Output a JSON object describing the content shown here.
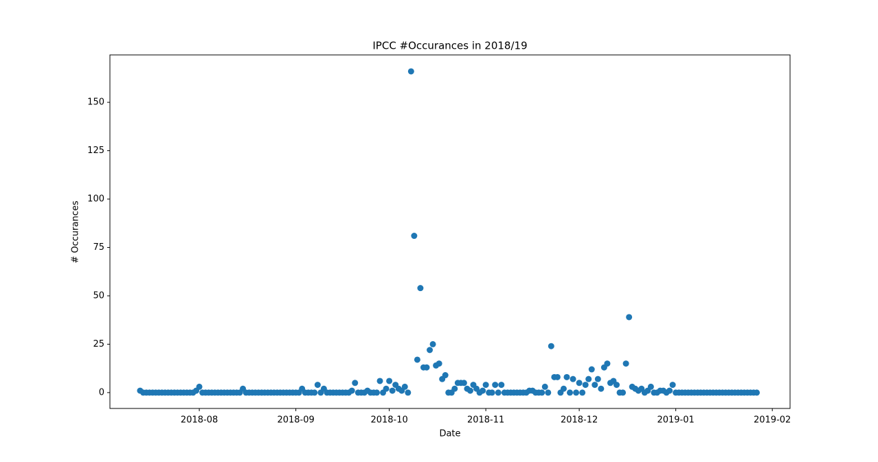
{
  "chart_data": {
    "type": "scatter",
    "title": "IPCC #Occurances in 2018/19",
    "x_label": "Date",
    "y_label": "# Occurances",
    "x": [
      17725,
      17726,
      17727,
      17728,
      17729,
      17730,
      17731,
      17732,
      17733,
      17734,
      17735,
      17736,
      17737,
      17738,
      17739,
      17740,
      17741,
      17742,
      17743,
      17744,
      17745,
      17746,
      17747,
      17748,
      17749,
      17750,
      17751,
      17752,
      17753,
      17754,
      17755,
      17756,
      17757,
      17758,
      17759,
      17760,
      17761,
      17762,
      17763,
      17764,
      17765,
      17766,
      17767,
      17768,
      17769,
      17770,
      17771,
      17772,
      17773,
      17774,
      17775,
      17776,
      17777,
      17778,
      17779,
      17780,
      17781,
      17782,
      17783,
      17784,
      17785,
      17786,
      17787,
      17788,
      17789,
      17790,
      17791,
      17792,
      17793,
      17794,
      17795,
      17796,
      17797,
      17798,
      17799,
      17800,
      17801,
      17802,
      17803,
      17804,
      17805,
      17806,
      17807,
      17808,
      17809,
      17810,
      17811,
      17812,
      17813,
      17814,
      17815,
      17816,
      17817,
      17818,
      17819,
      17820,
      17821,
      17822,
      17823,
      17824,
      17825,
      17826,
      17827,
      17828,
      17829,
      17830,
      17831,
      17832,
      17833,
      17834,
      17835,
      17836,
      17837,
      17838,
      17839,
      17840,
      17841,
      17842,
      17843,
      17844,
      17845,
      17846,
      17847,
      17848,
      17849,
      17850,
      17851,
      17852,
      17853,
      17854,
      17855,
      17856,
      17857,
      17858,
      17859,
      17860,
      17861,
      17862,
      17863,
      17864,
      17865,
      17866,
      17867,
      17868,
      17869,
      17870,
      17871,
      17872,
      17873,
      17874,
      17875,
      17876,
      17877,
      17878,
      17879,
      17880,
      17881,
      17882,
      17883,
      17884,
      17885,
      17886,
      17887,
      17888,
      17889,
      17890,
      17891,
      17892,
      17893,
      17894,
      17895,
      17896,
      17897,
      17898,
      17899,
      17900,
      17901,
      17902,
      17903,
      17904,
      17905,
      17906,
      17907,
      17908,
      17909,
      17910,
      17911,
      17912,
      17913,
      17914,
      17915,
      17916,
      17917,
      17918,
      17919,
      17920,
      17921,
      17922,
      17923
    ],
    "series": [
      {
        "color": "#1f77b4",
        "values": [
          1,
          0,
          0,
          0,
          0,
          0,
          0,
          0,
          0,
          0,
          0,
          0,
          0,
          0,
          0,
          0,
          0,
          0,
          1,
          3,
          0,
          0,
          0,
          0,
          0,
          0,
          0,
          0,
          0,
          0,
          0,
          0,
          0,
          2,
          0,
          0,
          0,
          0,
          0,
          0,
          0,
          0,
          0,
          0,
          0,
          0,
          0,
          0,
          0,
          0,
          0,
          0,
          2,
          0,
          0,
          0,
          0,
          4,
          0,
          2,
          0,
          0,
          0,
          0,
          0,
          0,
          0,
          0,
          1,
          5,
          0,
          0,
          0,
          1,
          0,
          0,
          0,
          6,
          0,
          2,
          6,
          1,
          4,
          2,
          1,
          3,
          0,
          166,
          81,
          17,
          54,
          13,
          13,
          22,
          25,
          14,
          15,
          7,
          9,
          0,
          0,
          2,
          5,
          5,
          5,
          2,
          1,
          4,
          2,
          0,
          1,
          4,
          0,
          0,
          4,
          0,
          4,
          0,
          0,
          0,
          0,
          0,
          0,
          0,
          0,
          1,
          1,
          0,
          0,
          0,
          3,
          0,
          24,
          8,
          8,
          0,
          2,
          8,
          0,
          7,
          0,
          5,
          0,
          4,
          7,
          12,
          4,
          7,
          2,
          13,
          15,
          5,
          6,
          4,
          0,
          0,
          15,
          39,
          3,
          2,
          1,
          2,
          0,
          1,
          3,
          0,
          0,
          1,
          1,
          0,
          1,
          4,
          0,
          0,
          0,
          0,
          0,
          0,
          0,
          0,
          0,
          0,
          0,
          0,
          0,
          0,
          0,
          0,
          0,
          0,
          0,
          0,
          0,
          0,
          0,
          0,
          0,
          0,
          0
        ]
      }
    ],
    "xlim": [
      17715.3,
      17933.7
    ],
    "xticks": [
      {
        "value": 17744,
        "label": "2018-08"
      },
      {
        "value": 17775,
        "label": "2018-09"
      },
      {
        "value": 17805,
        "label": "2018-10"
      },
      {
        "value": 17836,
        "label": "2018-11"
      },
      {
        "value": 17866,
        "label": "2018-12"
      },
      {
        "value": 17897,
        "label": "2019-01"
      },
      {
        "value": 17928,
        "label": "2019-02"
      }
    ],
    "ylim": [
      -8.2,
      174.5
    ],
    "yticks": [
      0,
      25,
      50,
      75,
      100,
      125,
      150
    ],
    "grid": false
  }
}
